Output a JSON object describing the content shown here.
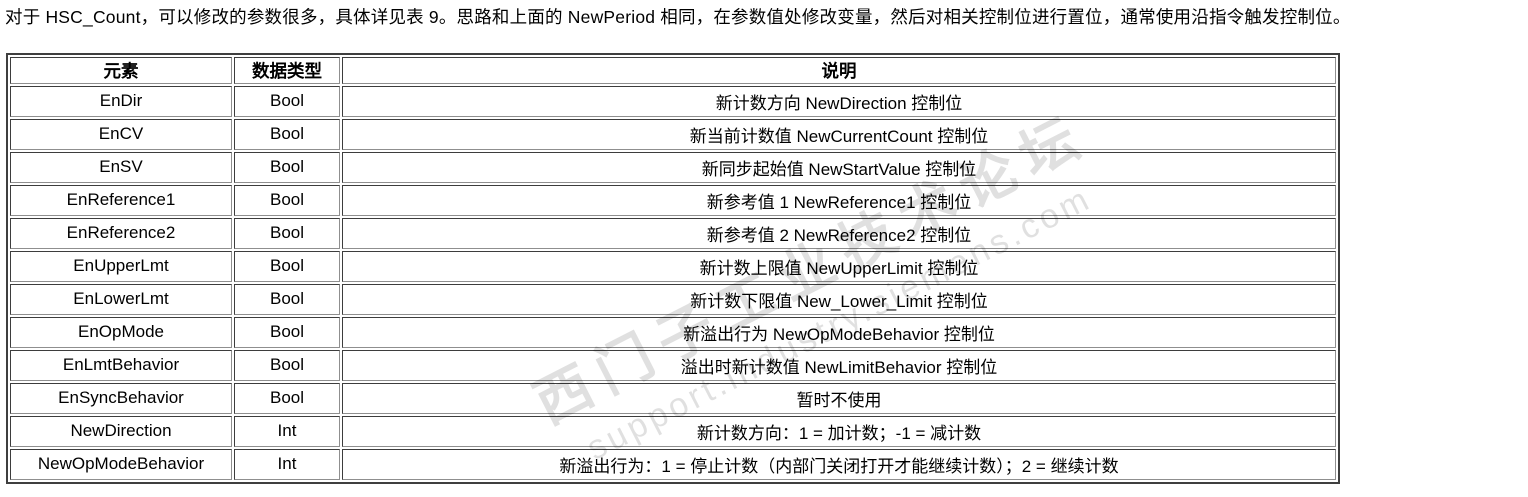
{
  "intro_paragraph": "对于 HSC_Count，可以修改的参数很多，具体详见表 9。思路和上面的 NewPeriod 相同，在参数值处修改变量，然后对相关控制位进行置位，通常使用沿指令触发控制位。",
  "table": {
    "headers": {
      "element": "元素",
      "datatype": "数据类型",
      "description": "说明"
    },
    "rows": [
      {
        "element": "EnDir",
        "datatype": "Bool",
        "description": "新计数方向 NewDirection 控制位"
      },
      {
        "element": "EnCV",
        "datatype": "Bool",
        "description": "新当前计数值 NewCurrentCount 控制位"
      },
      {
        "element": "EnSV",
        "datatype": "Bool",
        "description": "新同步起始值 NewStartValue 控制位"
      },
      {
        "element": "EnReference1",
        "datatype": "Bool",
        "description": "新参考值 1 NewReference1 控制位"
      },
      {
        "element": "EnReference2",
        "datatype": "Bool",
        "description": "新参考值 2 NewReference2 控制位"
      },
      {
        "element": "EnUpperLmt",
        "datatype": "Bool",
        "description": "新计数上限值 NewUpperLimit 控制位"
      },
      {
        "element": "EnLowerLmt",
        "datatype": "Bool",
        "description": "新计数下限值 New_Lower_Limit 控制位"
      },
      {
        "element": "EnOpMode",
        "datatype": "Bool",
        "description": "新溢出行为 NewOpModeBehavior 控制位"
      },
      {
        "element": "EnLmtBehavior",
        "datatype": "Bool",
        "description": "溢出时新计数值 NewLimitBehavior 控制位"
      },
      {
        "element": "EnSyncBehavior",
        "datatype": "Bool",
        "description": "暂时不使用"
      },
      {
        "element": "NewDirection",
        "datatype": "Int",
        "description": "新计数方向：1 = 加计数；-1 = 减计数"
      },
      {
        "element": "NewOpModeBehavior",
        "datatype": "Int",
        "description": "新溢出行为：1 = 停止计数（内部门关闭打开才能继续计数）；2 = 继续计数"
      }
    ]
  },
  "watermark": {
    "line1": "西门子工业技术论坛",
    "line2": "support.industry.siemens.com"
  },
  "colors": {
    "text": "#000000",
    "table_outer_border": "#3f3f3f",
    "cell_border_dark": "#3d3d3d",
    "cell_border_light": "#8f8f8f",
    "watermark_gray": "#d9d9d9"
  }
}
